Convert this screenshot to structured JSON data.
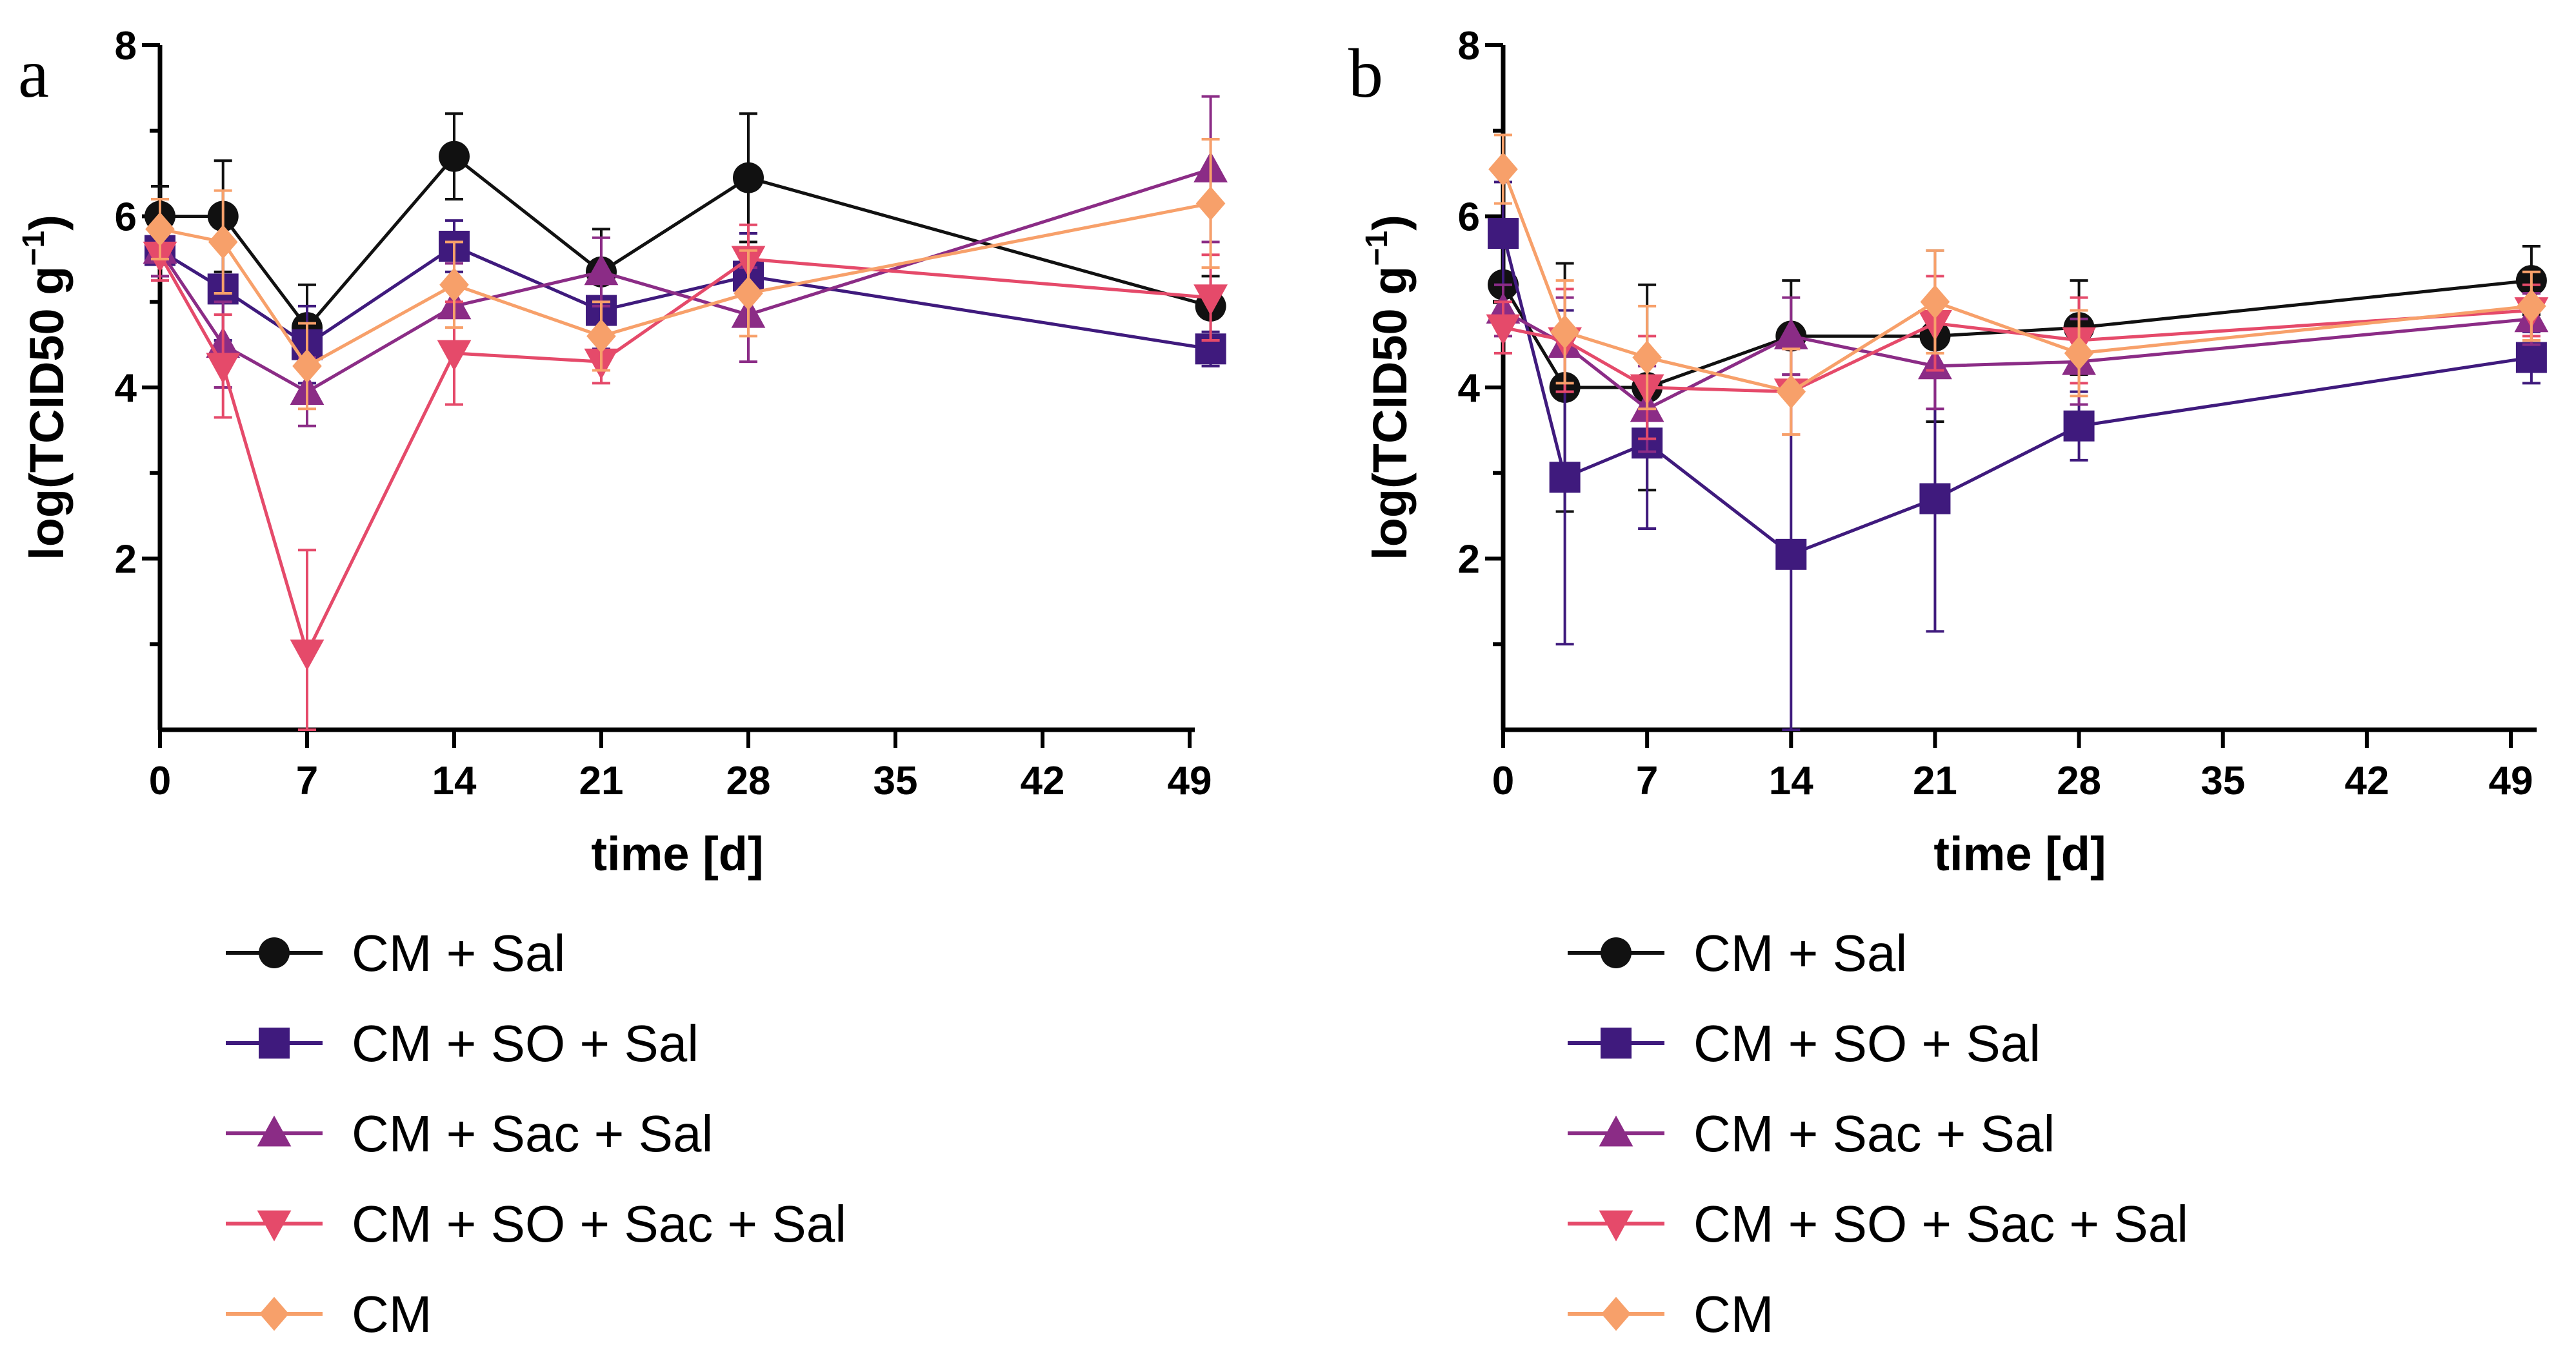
{
  "chart_data": [
    {
      "type": "line",
      "panel_label": "a",
      "xlabel": "time [d]",
      "ylabel": "log(TCID50 g",
      "ylabel_superscript": "−1",
      "ylabel_suffix": ")",
      "xlim": [
        0,
        50
      ],
      "ylim": [
        0,
        8
      ],
      "x_ticks": [
        0,
        7,
        14,
        21,
        28,
        35,
        42,
        49
      ],
      "y_ticks": [
        2,
        4,
        6,
        8
      ],
      "series": [
        {
          "name": "CM + Sal",
          "color": "#111111",
          "marker": "circle",
          "x": [
            0,
            3,
            7,
            14,
            21,
            28,
            50
          ],
          "y": [
            6.0,
            6.0,
            4.7,
            6.7,
            5.35,
            6.45,
            4.95
          ],
          "err": [
            0.35,
            0.65,
            0.5,
            0.5,
            0.5,
            0.75,
            0.35
          ]
        },
        {
          "name": "CM + SO + Sal",
          "color": "#3f1a7d",
          "marker": "square",
          "x": [
            0,
            3,
            7,
            14,
            21,
            28,
            50
          ],
          "y": [
            5.6,
            5.15,
            4.5,
            5.65,
            4.9,
            5.3,
            4.45
          ],
          "err": [
            0.3,
            0.6,
            0.45,
            0.3,
            0.45,
            0.5,
            0.2
          ]
        },
        {
          "name": "CM + Sac + Sal",
          "color": "#8b2c86",
          "marker": "triangle-up",
          "x": [
            0,
            3,
            7,
            14,
            21,
            28,
            50
          ],
          "y": [
            5.6,
            4.5,
            3.95,
            4.95,
            5.35,
            4.85,
            6.55
          ],
          "err": [
            0.3,
            0.5,
            0.4,
            0.5,
            0.4,
            0.55,
            0.85
          ]
        },
        {
          "name": "CM + SO + Sac + Sal",
          "color": "#e54a6a",
          "marker": "triangle-down",
          "x": [
            0,
            3,
            7,
            14,
            21,
            28,
            50
          ],
          "y": [
            5.55,
            4.25,
            0.9,
            4.4,
            4.3,
            5.5,
            5.05
          ],
          "err": [
            0.3,
            0.6,
            1.2,
            0.6,
            0.25,
            0.4,
            0.5
          ]
        },
        {
          "name": "CM",
          "color": "#f7a06a",
          "marker": "diamond",
          "x": [
            0,
            3,
            7,
            14,
            21,
            28,
            50
          ],
          "y": [
            5.85,
            5.7,
            4.25,
            5.2,
            4.6,
            5.1,
            6.15
          ],
          "err": [
            0.35,
            0.6,
            0.5,
            0.5,
            0.4,
            0.5,
            0.75
          ]
        }
      ]
    },
    {
      "type": "line",
      "panel_label": "b",
      "xlabel": "time [d]",
      "ylabel": "log(TCID50 g",
      "ylabel_superscript": "−1",
      "ylabel_suffix": ")",
      "xlim": [
        0,
        50
      ],
      "ylim": [
        0,
        8
      ],
      "x_ticks": [
        0,
        7,
        14,
        21,
        28,
        35,
        42,
        49
      ],
      "y_ticks": [
        2,
        4,
        6,
        8
      ],
      "series": [
        {
          "name": "CM + Sal",
          "color": "#111111",
          "marker": "circle",
          "x": [
            0,
            3,
            7,
            14,
            21,
            28,
            50
          ],
          "y": [
            5.2,
            4.0,
            4.0,
            4.6,
            4.6,
            4.7,
            5.25
          ],
          "err": [
            0.5,
            1.45,
            1.2,
            0.65,
            1.0,
            0.55,
            0.4
          ]
        },
        {
          "name": "CM + SO + Sal",
          "color": "#3f1a7d",
          "marker": "square",
          "x": [
            0,
            3,
            7,
            14,
            21,
            28,
            50
          ],
          "y": [
            5.8,
            2.95,
            3.35,
            2.05,
            2.7,
            3.55,
            4.35
          ],
          "err": [
            0.6,
            1.95,
            1.0,
            2.1,
            1.55,
            0.4,
            0.3
          ]
        },
        {
          "name": "CM + Sac + Sal",
          "color": "#8b2c86",
          "marker": "triangle-up",
          "x": [
            0,
            3,
            7,
            14,
            21,
            28,
            50
          ],
          "y": [
            4.9,
            4.5,
            3.75,
            4.6,
            4.25,
            4.3,
            4.8
          ],
          "err": [
            0.3,
            0.55,
            0.5,
            0.45,
            0.5,
            0.5,
            0.3
          ]
        },
        {
          "name": "CM + SO + Sac + Sal",
          "color": "#e54a6a",
          "marker": "triangle-down",
          "x": [
            0,
            3,
            7,
            14,
            21,
            28,
            50
          ],
          "y": [
            4.7,
            4.55,
            4.0,
            3.95,
            4.75,
            4.55,
            4.9
          ],
          "err": [
            0.3,
            0.6,
            0.6,
            0.5,
            0.55,
            0.5,
            0.3
          ]
        },
        {
          "name": "CM",
          "color": "#f7a06a",
          "marker": "diamond",
          "x": [
            0,
            3,
            7,
            14,
            21,
            28,
            50
          ],
          "y": [
            6.55,
            4.65,
            4.35,
            3.95,
            5.0,
            4.4,
            4.95
          ],
          "err": [
            0.4,
            0.6,
            0.6,
            0.5,
            0.6,
            0.5,
            0.4
          ]
        }
      ]
    }
  ]
}
